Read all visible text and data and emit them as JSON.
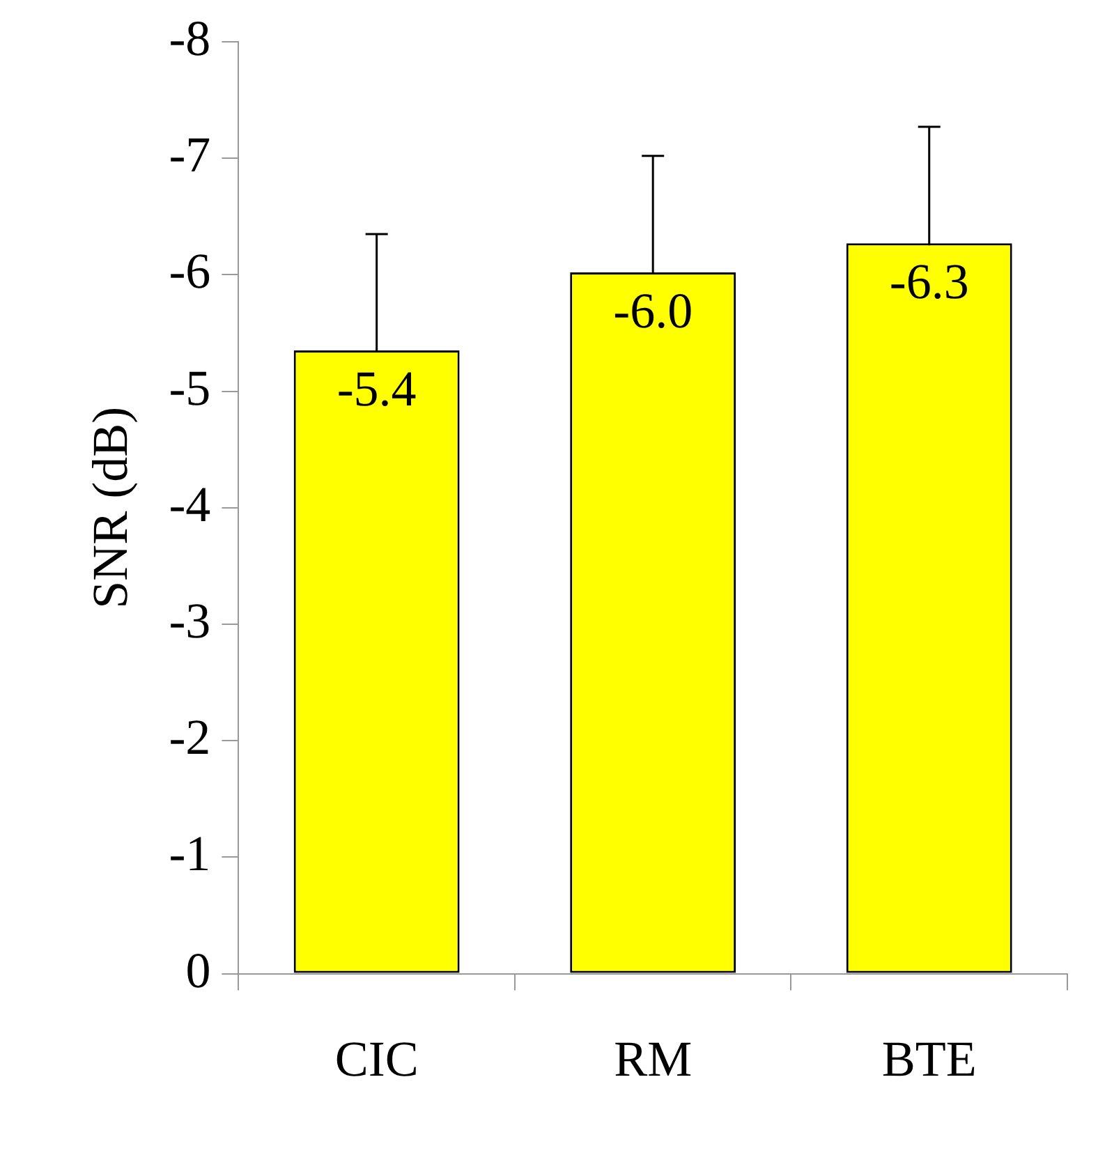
{
  "chart_data": {
    "type": "bar",
    "ylabel": "SNR (dB)",
    "categories": [
      "CIC",
      "RM",
      "BTE"
    ],
    "values": [
      -5.35,
      -6.02,
      -6.27
    ],
    "value_labels": [
      "-5.4",
      "-6.0",
      "-6.3"
    ],
    "errors": [
      1.0,
      1.0,
      1.0
    ],
    "color": "#ffff00",
    "ylim": [
      0,
      -8
    ],
    "yticks": [
      0,
      -1,
      -2,
      -3,
      -4,
      -5,
      -6,
      -7,
      -8
    ],
    "grid": false,
    "legend": false
  }
}
